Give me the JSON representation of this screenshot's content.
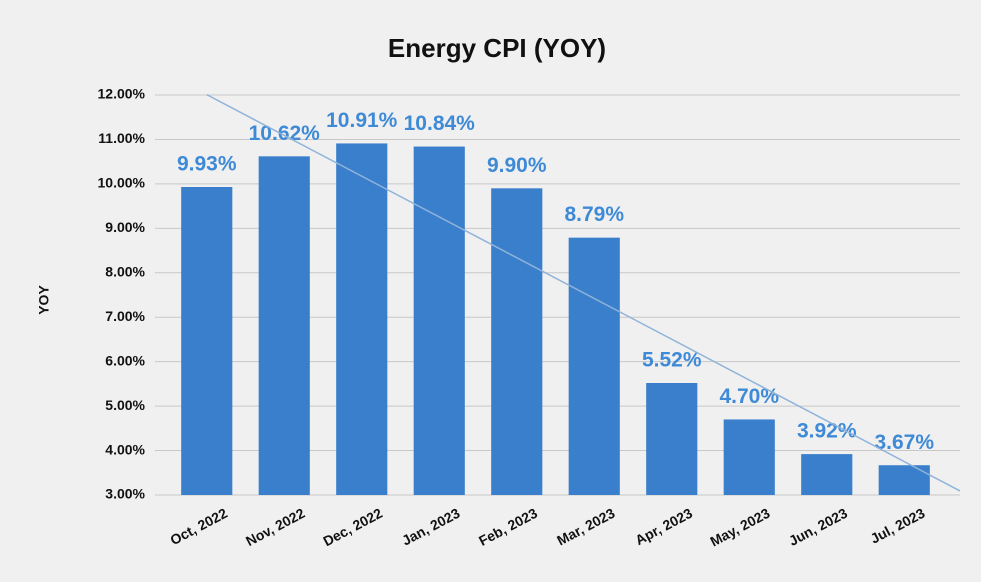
{
  "chart_data": {
    "type": "bar",
    "title": "Energy CPI (YOY)",
    "ylabel": "YOY",
    "categories": [
      "Oct, 2022",
      "Nov, 2022",
      "Dec, 2022",
      "Jan, 2023",
      "Feb, 2023",
      "Mar, 2023",
      "Apr, 2023",
      "May, 2023",
      "Jun, 2023",
      "Jul, 2023"
    ],
    "values": [
      9.93,
      10.62,
      10.91,
      10.84,
      9.9,
      8.79,
      5.52,
      4.7,
      3.92,
      3.67
    ],
    "value_labels": [
      "9.93%",
      "10.62%",
      "10.91%",
      "10.84%",
      "9.90%",
      "8.79%",
      "5.52%",
      "4.70%",
      "3.92%",
      "3.67%"
    ],
    "color": "#3a7fcc",
    "label_color": "#3f8ad6",
    "trendline": true,
    "ylim": [
      3,
      12
    ],
    "yticks": [
      {
        "value": 3,
        "label": "3.00%"
      },
      {
        "value": 4,
        "label": "4.00%"
      },
      {
        "value": 5,
        "label": "5.00%"
      },
      {
        "value": 6,
        "label": "6.00%"
      },
      {
        "value": 7,
        "label": "7.00%"
      },
      {
        "value": 8,
        "label": "8.00%"
      },
      {
        "value": 9,
        "label": "9.00%"
      },
      {
        "value": 10,
        "label": "10.00%"
      },
      {
        "value": 11,
        "label": "11.00%"
      },
      {
        "value": 12,
        "label": "12.00%"
      }
    ],
    "grid": true
  }
}
